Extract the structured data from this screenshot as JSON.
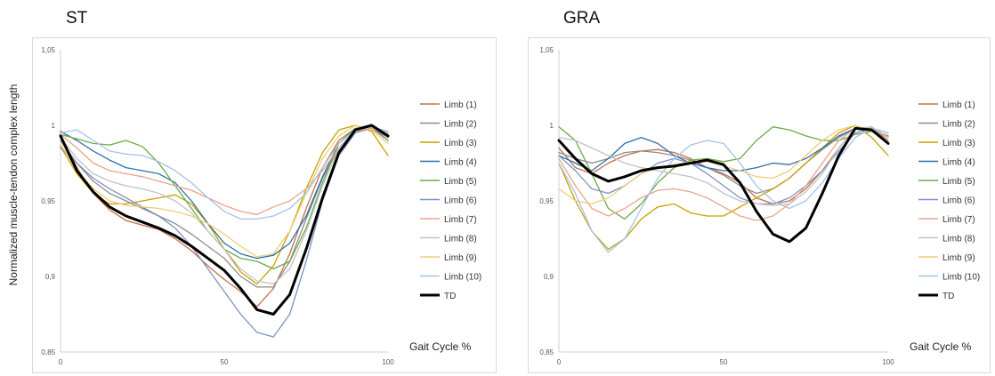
{
  "y_axis_label": "Normalized muscle-tendon complex length",
  "chart_data": [
    {
      "type": "line",
      "title": "ST",
      "xlabel": "Gait Cycle %",
      "xlim": [
        0,
        100
      ],
      "ylim": [
        0.85,
        1.05
      ],
      "x_ticks": [
        "0",
        "50",
        "100"
      ],
      "y_ticks": [
        "0,85",
        "0,9",
        "0,95",
        "1",
        "1,05"
      ],
      "grid": false,
      "legend": "right",
      "x": [
        0,
        5,
        10,
        15,
        20,
        25,
        30,
        35,
        40,
        45,
        50,
        55,
        60,
        65,
        70,
        75,
        80,
        85,
        90,
        95,
        100
      ],
      "series": [
        {
          "name": "Limb (1)",
          "color": "#c0714a",
          "values": [
            0.993,
            0.972,
            0.955,
            0.944,
            0.937,
            0.934,
            0.931,
            0.925,
            0.917,
            0.907,
            0.898,
            0.89,
            0.88,
            0.892,
            0.915,
            0.945,
            0.972,
            0.99,
            0.998,
            0.998,
            0.99
          ]
        },
        {
          "name": "Limb (2)",
          "color": "#8c8c8c",
          "values": [
            0.99,
            0.975,
            0.963,
            0.955,
            0.95,
            0.945,
            0.94,
            0.935,
            0.928,
            0.92,
            0.912,
            0.9,
            0.893,
            0.893,
            0.91,
            0.938,
            0.965,
            0.985,
            0.997,
            0.999,
            0.992
          ]
        },
        {
          "name": "Limb (3)",
          "color": "#c8a000",
          "values": [
            0.986,
            0.968,
            0.955,
            0.948,
            0.948,
            0.95,
            0.952,
            0.954,
            0.948,
            0.935,
            0.918,
            0.903,
            0.895,
            0.907,
            0.93,
            0.958,
            0.982,
            0.997,
            1.0,
            0.996,
            0.98
          ]
        },
        {
          "name": "Limb (4)",
          "color": "#2e6fa8",
          "values": [
            0.996,
            0.99,
            0.983,
            0.977,
            0.972,
            0.97,
            0.968,
            0.962,
            0.95,
            0.935,
            0.922,
            0.915,
            0.912,
            0.914,
            0.922,
            0.94,
            0.966,
            0.988,
            0.998,
            0.998,
            0.993
          ]
        },
        {
          "name": "Limb (5)",
          "color": "#6aab46",
          "values": [
            0.994,
            0.991,
            0.988,
            0.987,
            0.99,
            0.986,
            0.975,
            0.96,
            0.945,
            0.93,
            0.918,
            0.912,
            0.91,
            0.905,
            0.91,
            0.932,
            0.962,
            0.988,
            0.998,
            0.999,
            0.99
          ]
        },
        {
          "name": "Limb (6)",
          "color": "#7d92c4",
          "values": [
            0.985,
            0.975,
            0.965,
            0.958,
            0.952,
            0.946,
            0.94,
            0.932,
            0.92,
            0.905,
            0.89,
            0.875,
            0.863,
            0.86,
            0.875,
            0.91,
            0.95,
            0.98,
            0.995,
            0.998,
            0.992
          ]
        },
        {
          "name": "Limb (7)",
          "color": "#e8a48a",
          "values": [
            0.994,
            0.985,
            0.975,
            0.97,
            0.968,
            0.966,
            0.963,
            0.96,
            0.957,
            0.952,
            0.947,
            0.943,
            0.941,
            0.946,
            0.95,
            0.958,
            0.97,
            0.985,
            0.996,
            0.998,
            0.994
          ]
        },
        {
          "name": "Limb (8)",
          "color": "#c2c2c2",
          "values": [
            0.992,
            0.978,
            0.968,
            0.963,
            0.96,
            0.958,
            0.955,
            0.95,
            0.942,
            0.93,
            0.918,
            0.905,
            0.897,
            0.895,
            0.905,
            0.93,
            0.96,
            0.985,
            0.997,
            0.999,
            0.995
          ]
        },
        {
          "name": "Limb (9)",
          "color": "#f2cc7a",
          "values": [
            0.988,
            0.97,
            0.958,
            0.95,
            0.947,
            0.946,
            0.945,
            0.943,
            0.94,
            0.935,
            0.928,
            0.92,
            0.913,
            0.915,
            0.93,
            0.955,
            0.978,
            0.993,
            1.0,
            0.997,
            0.988
          ]
        },
        {
          "name": "Limb (10)",
          "color": "#a6c2e6",
          "values": [
            0.995,
            0.997,
            0.99,
            0.983,
            0.981,
            0.98,
            0.976,
            0.97,
            0.962,
            0.952,
            0.943,
            0.938,
            0.938,
            0.94,
            0.945,
            0.955,
            0.972,
            0.988,
            0.997,
            0.999,
            0.996
          ]
        },
        {
          "name": "TD",
          "color": "#000000",
          "values": [
            0.993,
            0.97,
            0.956,
            0.946,
            0.94,
            0.936,
            0.932,
            0.927,
            0.92,
            0.912,
            0.904,
            0.892,
            0.878,
            0.875,
            0.888,
            0.918,
            0.952,
            0.982,
            0.997,
            1.0,
            0.993
          ]
        }
      ]
    },
    {
      "type": "line",
      "title": "GRA",
      "xlabel": "Gait Cycle %",
      "xlim": [
        0,
        100
      ],
      "ylim": [
        0.85,
        1.05
      ],
      "x_ticks": [
        "0",
        "50",
        "100"
      ],
      "y_ticks": [
        "0,85",
        "0,9",
        "0,95",
        "1",
        "1,05"
      ],
      "grid": false,
      "legend": "right",
      "x": [
        0,
        5,
        10,
        15,
        20,
        25,
        30,
        35,
        40,
        45,
        50,
        55,
        60,
        65,
        70,
        75,
        80,
        85,
        90,
        95,
        100
      ],
      "series": [
        {
          "name": "Limb (1)",
          "color": "#c0714a",
          "values": [
            0.985,
            0.972,
            0.968,
            0.975,
            0.98,
            0.983,
            0.984,
            0.982,
            0.978,
            0.972,
            0.968,
            0.962,
            0.952,
            0.948,
            0.95,
            0.958,
            0.97,
            0.985,
            0.998,
            0.998,
            0.99
          ]
        },
        {
          "name": "Limb (2)",
          "color": "#8c8c8c",
          "values": [
            0.982,
            0.978,
            0.975,
            0.978,
            0.982,
            0.983,
            0.982,
            0.98,
            0.977,
            0.972,
            0.967,
            0.96,
            0.955,
            0.958,
            0.965,
            0.975,
            0.984,
            0.992,
            0.998,
            0.997,
            0.992
          ]
        },
        {
          "name": "Limb (3)",
          "color": "#c8a000",
          "values": [
            0.975,
            0.95,
            0.93,
            0.918,
            0.925,
            0.938,
            0.946,
            0.948,
            0.942,
            0.94,
            0.94,
            0.946,
            0.952,
            0.958,
            0.965,
            0.975,
            0.985,
            0.995,
            1.0,
            0.992,
            0.98
          ]
        },
        {
          "name": "Limb (4)",
          "color": "#2e6fa8",
          "values": [
            0.98,
            0.975,
            0.97,
            0.978,
            0.988,
            0.992,
            0.988,
            0.98,
            0.975,
            0.972,
            0.97,
            0.97,
            0.972,
            0.975,
            0.974,
            0.978,
            0.985,
            0.993,
            0.998,
            0.997,
            0.993
          ]
        },
        {
          "name": "Limb (5)",
          "color": "#6aab46",
          "values": [
            0.999,
            0.99,
            0.968,
            0.945,
            0.938,
            0.948,
            0.962,
            0.972,
            0.977,
            0.978,
            0.976,
            0.978,
            0.99,
            0.999,
            0.997,
            0.993,
            0.99,
            0.99,
            0.994,
            0.996,
            0.993
          ]
        },
        {
          "name": "Limb (6)",
          "color": "#7d92c4",
          "values": [
            0.98,
            0.97,
            0.958,
            0.955,
            0.96,
            0.968,
            0.975,
            0.978,
            0.975,
            0.968,
            0.96,
            0.952,
            0.948,
            0.948,
            0.952,
            0.96,
            0.97,
            0.983,
            0.995,
            0.998,
            0.995
          ]
        },
        {
          "name": "Limb (7)",
          "color": "#e8a48a",
          "values": [
            0.978,
            0.96,
            0.945,
            0.94,
            0.945,
            0.952,
            0.957,
            0.958,
            0.956,
            0.952,
            0.946,
            0.94,
            0.937,
            0.94,
            0.948,
            0.96,
            0.975,
            0.99,
            0.998,
            0.998,
            0.992
          ]
        },
        {
          "name": "Limb (8)",
          "color": "#c2c2c2",
          "values": [
            0.992,
            0.99,
            0.985,
            0.98,
            0.975,
            0.972,
            0.97,
            0.968,
            0.966,
            0.962,
            0.955,
            0.95,
            0.948,
            0.947,
            0.948,
            0.956,
            0.968,
            0.985,
            0.998,
            0.999,
            0.992
          ]
        },
        {
          "name": "Limb (9)",
          "color": "#f2cc7a",
          "values": [
            0.958,
            0.95,
            0.948,
            0.952,
            0.96,
            0.968,
            0.972,
            0.974,
            0.976,
            0.976,
            0.973,
            0.97,
            0.966,
            0.965,
            0.97,
            0.98,
            0.99,
            0.997,
            1.0,
            0.996,
            0.988
          ]
        },
        {
          "name": "Limb (10)",
          "color": "#a6c2e6",
          "values": [
            0.975,
            0.955,
            0.93,
            0.916,
            0.925,
            0.945,
            0.965,
            0.978,
            0.987,
            0.99,
            0.988,
            0.975,
            0.96,
            0.95,
            0.945,
            0.95,
            0.962,
            0.978,
            0.992,
            0.998,
            0.995
          ]
        },
        {
          "name": "TD",
          "color": "#000000",
          "values": [
            0.99,
            0.978,
            0.968,
            0.963,
            0.966,
            0.97,
            0.972,
            0.973,
            0.975,
            0.977,
            0.974,
            0.962,
            0.943,
            0.928,
            0.923,
            0.932,
            0.955,
            0.98,
            0.998,
            0.997,
            0.988
          ]
        }
      ]
    }
  ]
}
